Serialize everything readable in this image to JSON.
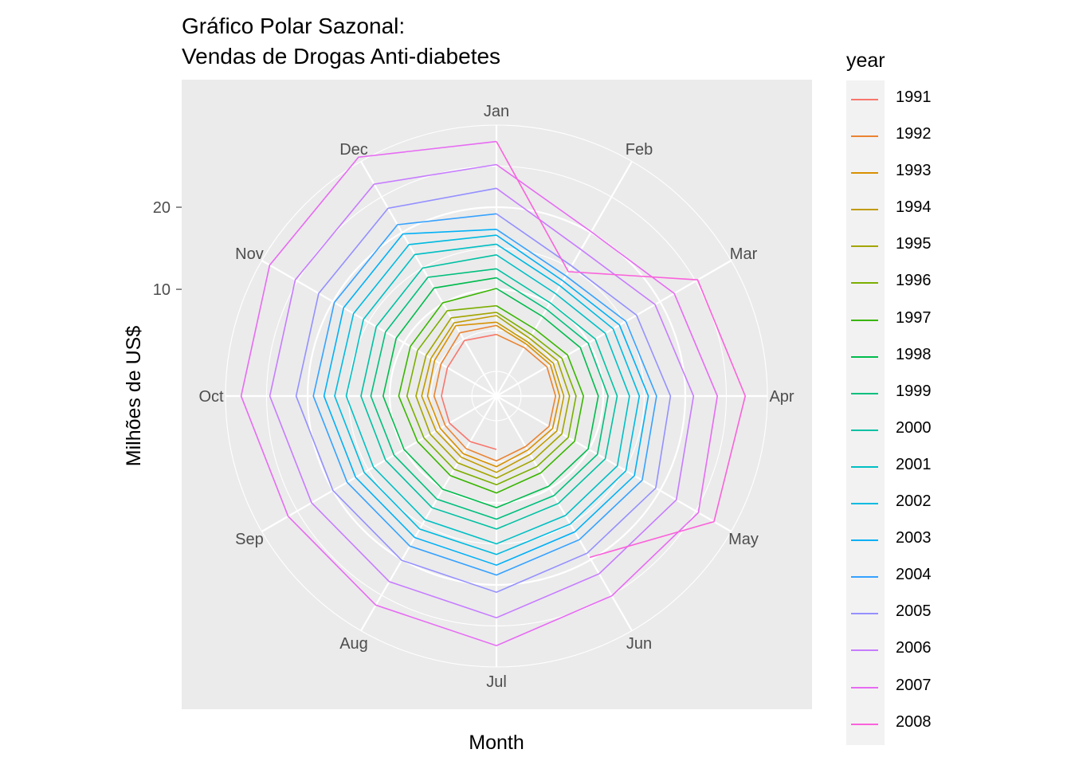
{
  "title_lines": [
    "Gráfico Polar Sazonal:",
    "Vendas de Drogas Anti-diabetes"
  ],
  "chart_data": {
    "type": "line",
    "coord": "polar",
    "title": "Gráfico Polar Sazonal:\nVendas de Drogas Anti-diabetes",
    "xlabel": "Month",
    "ylabel": "Milhões de US$",
    "x": [
      "Jan",
      "Feb",
      "Mar",
      "Apr",
      "May",
      "Jun",
      "Jul",
      "Aug",
      "Sep",
      "Oct",
      "Nov",
      "Dec"
    ],
    "r_ticks": [
      10,
      20
    ],
    "r_range": [
      -3,
      30
    ],
    "grid": true,
    "legend_title": "year",
    "legend_position": "right",
    "series": [
      {
        "name": "1991",
        "color": "#F8766D",
        "values": [
          null,
          null,
          null,
          null,
          null,
          null,
          3.5,
          3.4,
          3.6,
          3.7,
          3.9,
          4.8
        ]
      },
      {
        "name": "1992",
        "color": "#EA8331",
        "values": [
          4.5,
          3.8,
          4.1,
          4.2,
          4.4,
          4.1,
          4.9,
          4.4,
          4.2,
          4.6,
          4.8,
          5.9
        ]
      },
      {
        "name": "1993",
        "color": "#D89000",
        "values": [
          5.6,
          4.3,
          4.6,
          4.7,
          4.9,
          4.6,
          5.6,
          5.1,
          4.9,
          5.4,
          5.7,
          6.9
        ]
      },
      {
        "name": "1994",
        "color": "#C09B00",
        "values": [
          6.0,
          4.6,
          5.0,
          5.2,
          5.5,
          5.2,
          6.3,
          5.6,
          5.5,
          6.1,
          6.2,
          7.3
        ]
      },
      {
        "name": "1995",
        "color": "#A3A500",
        "values": [
          6.8,
          5.1,
          5.6,
          5.9,
          6.2,
          6.0,
          7.0,
          6.4,
          6.3,
          6.8,
          6.9,
          8.0
        ]
      },
      {
        "name": "1996",
        "color": "#7CAE00",
        "values": [
          7.2,
          5.6,
          6.2,
          6.7,
          7.1,
          6.9,
          7.8,
          7.3,
          7.2,
          7.9,
          8.1,
          9.0
        ]
      },
      {
        "name": "1997",
        "color": "#39B600",
        "values": [
          8.0,
          6.4,
          7.0,
          7.6,
          8.0,
          7.8,
          8.8,
          8.2,
          8.1,
          8.9,
          9.1,
          10.1
        ]
      },
      {
        "name": "1998",
        "color": "#00BB4E",
        "values": [
          10.1,
          8.2,
          8.8,
          9.4,
          9.9,
          9.7,
          10.6,
          10.1,
          10.0,
          10.8,
          11.1,
          12.2
        ]
      },
      {
        "name": "1999",
        "color": "#00BF7D",
        "values": [
          11.4,
          9.2,
          9.9,
          10.6,
          11.2,
          11.0,
          12.0,
          11.5,
          11.4,
          12.3,
          12.6,
          13.7
        ]
      },
      {
        "name": "2000",
        "color": "#00C1A3",
        "values": [
          12.5,
          10.1,
          10.9,
          11.7,
          12.3,
          12.1,
          13.2,
          12.7,
          12.6,
          13.5,
          13.9,
          15.0
        ]
      },
      {
        "name": "2001",
        "color": "#00BFC4",
        "values": [
          14.2,
          11.4,
          12.3,
          13.2,
          14.0,
          13.8,
          15.0,
          14.4,
          14.3,
          15.3,
          15.7,
          16.9
        ]
      },
      {
        "name": "2002",
        "color": "#00BAE0",
        "values": [
          15.5,
          12.5,
          13.4,
          14.4,
          15.2,
          15.0,
          16.3,
          15.7,
          15.6,
          16.7,
          17.1,
          18.3
        ]
      },
      {
        "name": "2003",
        "color": "#00B0F6",
        "values": [
          16.6,
          13.2,
          14.3,
          15.5,
          16.4,
          16.1,
          17.6,
          16.9,
          16.8,
          18.0,
          18.5,
          19.8
        ]
      },
      {
        "name": "2004",
        "color": "#35A2FF",
        "values": [
          17.3,
          13.9,
          15.2,
          16.5,
          17.5,
          17.2,
          18.8,
          18.1,
          18.0,
          19.3,
          19.8,
          21.1
        ]
      },
      {
        "name": "2005",
        "color": "#9590FF",
        "values": [
          19.2,
          15.3,
          16.7,
          18.2,
          19.4,
          19.1,
          20.9,
          20.1,
          20.0,
          21.4,
          22.0,
          23.4
        ]
      },
      {
        "name": "2006",
        "color": "#C77CFF",
        "values": [
          22.3,
          17.6,
          19.3,
          21.0,
          22.3,
          22.0,
          24.0,
          23.1,
          23.0,
          24.6,
          25.3,
          26.8
        ]
      },
      {
        "name": "2007",
        "color": "#E76BF3",
        "values": [
          25.2,
          20.1,
          22.0,
          23.9,
          25.4,
          25.1,
          27.4,
          26.4,
          26.3,
          28.1,
          28.9,
          30.6
        ]
      },
      {
        "name": "2008",
        "color": "#FA62DB",
        "values": [
          28.0,
          14.5,
          25.3,
          27.3,
          27.6,
          19.7,
          null,
          null,
          null,
          null,
          null,
          null
        ]
      }
    ]
  }
}
